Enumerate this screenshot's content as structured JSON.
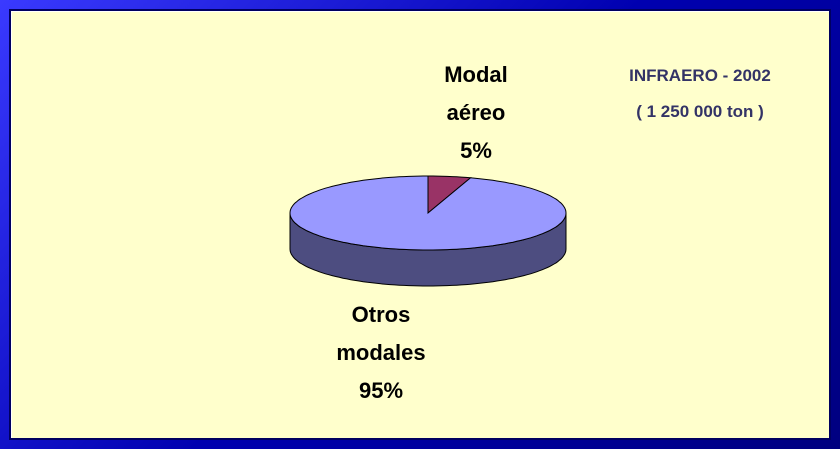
{
  "chart_data": {
    "type": "pie",
    "title": "INFRAERO - 2002",
    "subtitle": "( 1 250 000 ton )",
    "categories": [
      "Modal aéreo",
      "Otros modales"
    ],
    "values": [
      5,
      95
    ],
    "value_labels": [
      "5%",
      "95%"
    ],
    "colors": [
      "#993366",
      "#9999FF"
    ]
  }
}
